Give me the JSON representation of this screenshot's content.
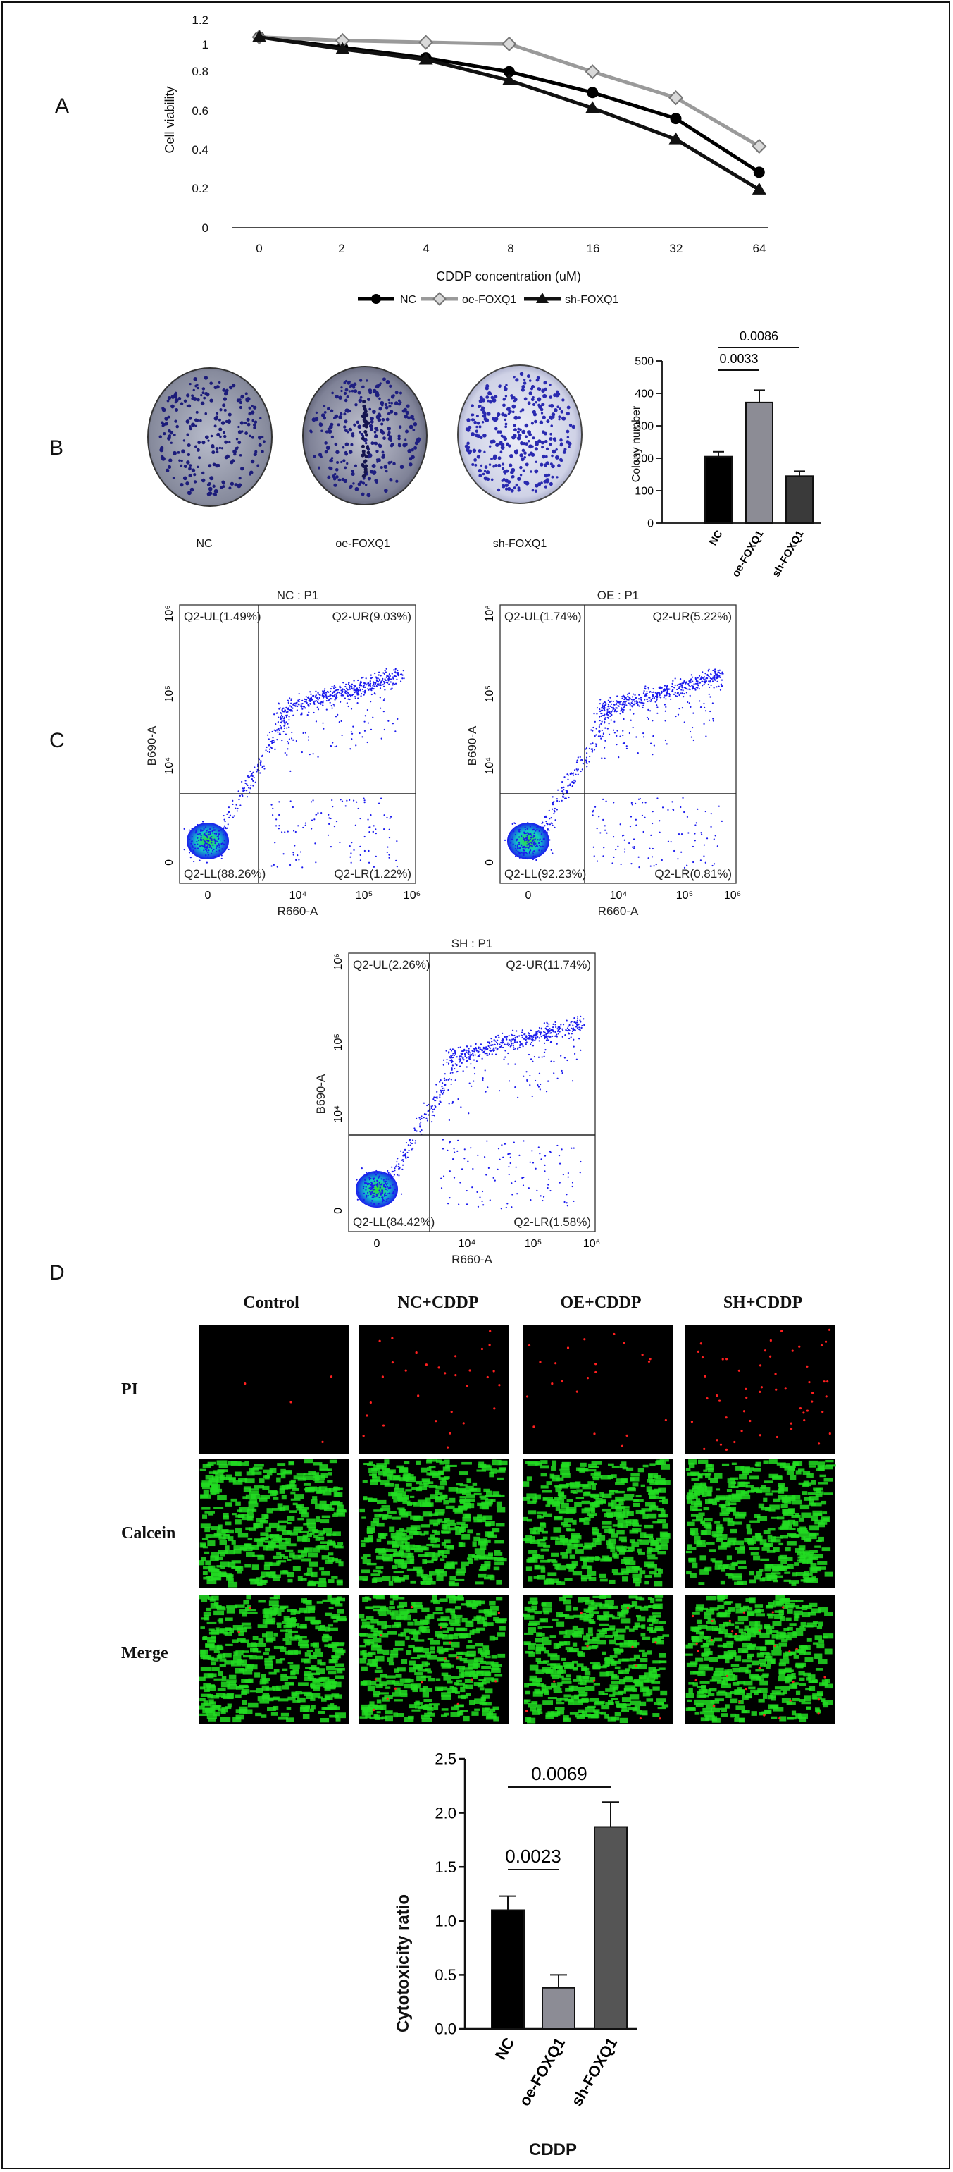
{
  "panels": {
    "a": "A",
    "b": "B",
    "c": "C",
    "d": "D"
  },
  "colors": {
    "nc": "#000000",
    "oe": "#9a9a9a",
    "sh": "#111111",
    "bar_oe": "#8c8c95",
    "bar_sh": "#3a3a3a",
    "bar_sh_d": "#555555",
    "dots": "#1a1aee",
    "pi_red": "#ff2020",
    "calcein_green": "#22dd22"
  },
  "chart_data": [
    {
      "id": "viability",
      "type": "line",
      "ylabel": "Cell viability",
      "xlabel": "CDDP concentration (uM)",
      "categories": [
        "0",
        "2",
        "4",
        "8",
        "16",
        "32",
        "64"
      ],
      "y_ticks": [
        "1.2",
        "1",
        "0.8",
        "0.6",
        "0.4",
        "0.2",
        "0"
      ],
      "ylim": [
        0,
        1.2
      ],
      "legend_position": "bottom",
      "series": [
        {
          "name": "NC",
          "marker": "circle",
          "values": [
            1.1,
            1.04,
            0.98,
            0.9,
            0.78,
            0.63,
            0.32
          ]
        },
        {
          "name": "oe-FOXQ1",
          "marker": "diamond",
          "values": [
            1.1,
            1.08,
            1.07,
            1.06,
            0.9,
            0.75,
            0.47
          ]
        },
        {
          "name": "sh-FOXQ1",
          "marker": "triangle",
          "values": [
            1.1,
            1.03,
            0.97,
            0.85,
            0.69,
            0.51,
            0.22
          ]
        }
      ]
    },
    {
      "id": "colony",
      "type": "bar",
      "ylabel": "Colony number",
      "categories": [
        "NC",
        "oe-FOXQ1",
        "sh-FOXQ1"
      ],
      "values": [
        205,
        372,
        145
      ],
      "errors": [
        15,
        38,
        15
      ],
      "ylim": [
        0,
        500
      ],
      "y_ticks": [
        "500",
        "400",
        "300",
        "200",
        "100",
        "0"
      ],
      "comparisons": [
        {
          "label": "0.0086",
          "from": 0,
          "to": 2
        },
        {
          "label": "0.0033",
          "from": 0,
          "to": 1
        }
      ]
    },
    {
      "id": "cytotoxicity",
      "type": "bar",
      "ylabel": "Cytotoxicity ratio",
      "xlabel": "CDDP",
      "categories": [
        "NC",
        "oe-FOXQ1",
        "sh-FOXQ1"
      ],
      "values": [
        1.1,
        0.38,
        1.87
      ],
      "errors": [
        0.13,
        0.12,
        0.23
      ],
      "ylim": [
        0,
        2.5
      ],
      "y_ticks": [
        "2.5",
        "2.0",
        "1.5",
        "1.0",
        "0.5",
        "0.0"
      ],
      "comparisons": [
        {
          "label": "0.0069",
          "from": 0,
          "to": 2
        },
        {
          "label": "0.0023",
          "from": 0,
          "to": 1
        }
      ]
    }
  ],
  "colony_plates": [
    "NC",
    "oe-FOXQ1",
    "sh-FOXQ1"
  ],
  "flow": {
    "xlabel": "R660-A",
    "ylabel": "B690-A",
    "x_ticks": [
      "0",
      "10⁴",
      "10⁵",
      "10⁶"
    ],
    "y_ticks": [
      "10⁶",
      "10⁵",
      "10⁴",
      "0"
    ],
    "plots": [
      {
        "title": "NC : P1",
        "ul": "Q2-UL(1.49%)",
        "ur": "Q2-UR(9.03%)",
        "ll": "Q2-LL(88.26%)",
        "lr": "Q2-LR(1.22%)"
      },
      {
        "title": "OE : P1",
        "ul": "Q2-UL(1.74%)",
        "ur": "Q2-UR(5.22%)",
        "ll": "Q2-LL(92.23%)",
        "lr": "Q2-LR(0.81%)"
      },
      {
        "title": "SH : P1",
        "ul": "Q2-UL(2.26%)",
        "ur": "Q2-UR(11.74%)",
        "ll": "Q2-LL(84.42%)",
        "lr": "Q2-LR(1.58%)"
      }
    ]
  },
  "staining": {
    "columns": [
      "Control",
      "NC+CDDP",
      "OE+CDDP",
      "SH+CDDP"
    ],
    "rows": [
      "PI",
      "Calcein",
      "Merge"
    ]
  }
}
